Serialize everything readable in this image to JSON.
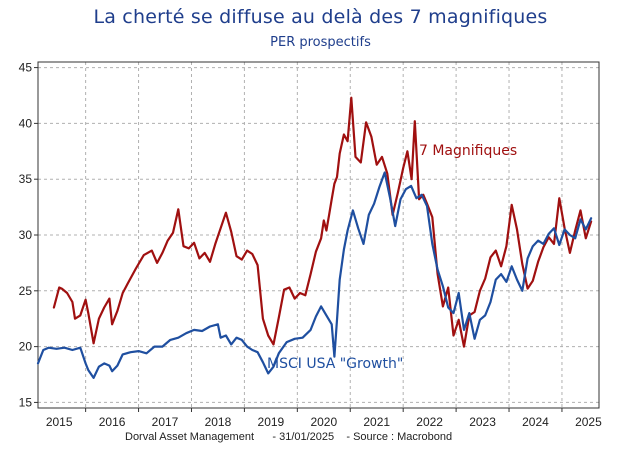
{
  "title": "La cherté se diffuse au delà des 7 magnifiques",
  "subtitle": "PER prospectifs",
  "footer": {
    "source_org": "Dorval Asset Management",
    "date": "31/01/2025",
    "source": "Source : Macrobond"
  },
  "colors": {
    "title": "#1f3e8c",
    "seven": "#a01010",
    "growth": "#1f4fa0",
    "grid": "#b0b0b0"
  },
  "chart_data": {
    "type": "line",
    "title": "La cherté se diffuse au delà des 7 magnifiques",
    "subtitle": "PER prospectifs",
    "xlabel": "",
    "ylabel": "",
    "xlim": [
      2014.6,
      2025.2
    ],
    "ylim": [
      14.5,
      45.5
    ],
    "grid": true,
    "yticks": [
      15,
      20,
      25,
      30,
      35,
      40,
      45
    ],
    "xticks": [
      "2015",
      "2016",
      "2017",
      "2018",
      "2019",
      "2020",
      "2021",
      "2022",
      "2023",
      "2024",
      "2025"
    ],
    "annotations": [
      {
        "text": "7 Magnifiques",
        "series": "7 Magnifiques"
      },
      {
        "text": "MSCI USA \"Growth\"",
        "series": "MSCI USA \"Growth\""
      }
    ],
    "series": [
      {
        "name": "7 Magnifiques",
        "color": "#a01010",
        "x": [
          2014.9,
          2015.0,
          2015.05,
          2015.15,
          2015.25,
          2015.3,
          2015.4,
          2015.5,
          2015.55,
          2015.65,
          2015.75,
          2015.85,
          2015.95,
          2016.0,
          2016.1,
          2016.2,
          2016.3,
          2016.45,
          2016.6,
          2016.75,
          2016.85,
          2016.95,
          2017.05,
          2017.15,
          2017.25,
          2017.35,
          2017.45,
          2017.55,
          2017.65,
          2017.75,
          2017.85,
          2017.95,
          2018.05,
          2018.15,
          2018.25,
          2018.35,
          2018.45,
          2018.55,
          2018.65,
          2018.75,
          2018.85,
          2018.95,
          2019.05,
          2019.15,
          2019.25,
          2019.35,
          2019.45,
          2019.55,
          2019.65,
          2019.75,
          2019.85,
          2019.95,
          2020.0,
          2020.05,
          2020.1,
          2020.15,
          2020.2,
          2020.25,
          2020.3,
          2020.38,
          2020.45,
          2020.52,
          2020.6,
          2020.7,
          2020.8,
          2020.9,
          2021.0,
          2021.1,
          2021.2,
          2021.3,
          2021.4,
          2021.5,
          2021.58,
          2021.66,
          2021.72,
          2021.8,
          2021.88,
          2021.95,
          2022.05,
          2022.15,
          2022.25,
          2022.35,
          2022.45,
          2022.55,
          2022.65,
          2022.75,
          2022.85,
          2022.95,
          2023.05,
          2023.15,
          2023.25,
          2023.35,
          2023.45,
          2023.55,
          2023.65,
          2023.75,
          2023.85,
          2023.95,
          2024.05,
          2024.15,
          2024.25,
          2024.35,
          2024.45,
          2024.55,
          2024.65,
          2024.75,
          2024.85,
          2024.95,
          2025.05
        ],
        "y": [
          23.5,
          25.3,
          25.2,
          24.8,
          24.0,
          22.5,
          22.8,
          24.2,
          23.0,
          20.3,
          22.5,
          23.5,
          24.3,
          22.0,
          23.2,
          24.8,
          25.7,
          27.0,
          28.2,
          28.6,
          27.5,
          28.4,
          29.5,
          30.2,
          32.3,
          29.0,
          28.8,
          29.3,
          27.9,
          28.4,
          27.6,
          29.2,
          30.6,
          32.0,
          30.3,
          28.1,
          27.8,
          28.6,
          28.3,
          27.3,
          22.5,
          21.0,
          20.2,
          22.6,
          25.1,
          25.3,
          24.3,
          24.8,
          24.6,
          26.5,
          28.5,
          29.7,
          31.3,
          30.4,
          31.8,
          33.2,
          34.6,
          35.2,
          37.3,
          39.0,
          38.4,
          42.3,
          37.0,
          36.5,
          40.1,
          38.8,
          36.3,
          37.0,
          35.5,
          31.8,
          33.8,
          36.0,
          37.5,
          35.0,
          40.2,
          33.2,
          33.6,
          32.8,
          31.6,
          26.5,
          23.6,
          25.3,
          21.0,
          22.4,
          20.0,
          22.8,
          23.1,
          25.0,
          26.1,
          28.0,
          28.6,
          27.2,
          29.0,
          32.7,
          30.5,
          27.4,
          25.2,
          25.9,
          27.6,
          28.9,
          29.8,
          29.2,
          33.3,
          30.6,
          28.4,
          30.4,
          32.2,
          29.7,
          31.2
        ]
      },
      {
        "name": "MSCI USA \"Growth\"",
        "color": "#1f4fa0",
        "x": [
          2014.6,
          2014.7,
          2014.8,
          2014.95,
          2015.1,
          2015.25,
          2015.4,
          2015.5,
          2015.55,
          2015.65,
          2015.75,
          2015.85,
          2015.95,
          2016.0,
          2016.1,
          2016.2,
          2016.35,
          2016.5,
          2016.65,
          2016.8,
          2016.95,
          2017.1,
          2017.25,
          2017.4,
          2017.55,
          2017.7,
          2017.85,
          2018.0,
          2018.05,
          2018.15,
          2018.25,
          2018.35,
          2018.45,
          2018.55,
          2018.65,
          2018.75,
          2018.85,
          2018.95,
          2019.05,
          2019.15,
          2019.3,
          2019.45,
          2019.6,
          2019.75,
          2019.85,
          2019.95,
          2020.05,
          2020.15,
          2020.2,
          2020.25,
          2020.3,
          2020.38,
          2020.45,
          2020.55,
          2020.65,
          2020.75,
          2020.85,
          2020.95,
          2021.05,
          2021.15,
          2021.25,
          2021.35,
          2021.45,
          2021.55,
          2021.65,
          2021.75,
          2021.85,
          2021.95,
          2022.05,
          2022.15,
          2022.25,
          2022.35,
          2022.45,
          2022.55,
          2022.65,
          2022.75,
          2022.85,
          2022.95,
          2023.05,
          2023.15,
          2023.25,
          2023.35,
          2023.45,
          2023.55,
          2023.65,
          2023.75,
          2023.85,
          2023.95,
          2024.05,
          2024.15,
          2024.25,
          2024.35,
          2024.45,
          2024.55,
          2024.65,
          2024.75,
          2024.85,
          2024.95,
          2025.05
        ],
        "y": [
          18.5,
          19.7,
          19.9,
          19.8,
          19.9,
          19.7,
          19.9,
          18.5,
          17.9,
          17.2,
          18.2,
          18.5,
          18.3,
          17.8,
          18.3,
          19.3,
          19.5,
          19.6,
          19.4,
          20.0,
          20.0,
          20.6,
          20.8,
          21.2,
          21.5,
          21.4,
          21.8,
          22.0,
          20.8,
          21.0,
          20.2,
          20.8,
          20.6,
          20.0,
          19.7,
          19.5,
          18.6,
          17.6,
          18.2,
          19.4,
          20.4,
          20.7,
          20.8,
          21.5,
          22.7,
          23.6,
          22.8,
          22.0,
          19.1,
          22.4,
          26.0,
          28.7,
          30.4,
          32.2,
          30.6,
          29.2,
          31.8,
          32.8,
          34.3,
          35.6,
          33.4,
          30.8,
          33.2,
          34.1,
          34.4,
          33.3,
          33.6,
          32.6,
          29.2,
          26.9,
          25.4,
          23.5,
          23.0,
          24.8,
          21.5,
          23.0,
          20.7,
          22.4,
          22.8,
          24.0,
          26.0,
          26.5,
          25.8,
          27.2,
          26.0,
          25.0,
          27.9,
          29.0,
          29.5,
          29.2,
          30.1,
          30.6,
          29.1,
          30.5,
          30.0,
          29.7,
          31.4,
          30.5,
          31.5
        ]
      }
    ]
  }
}
